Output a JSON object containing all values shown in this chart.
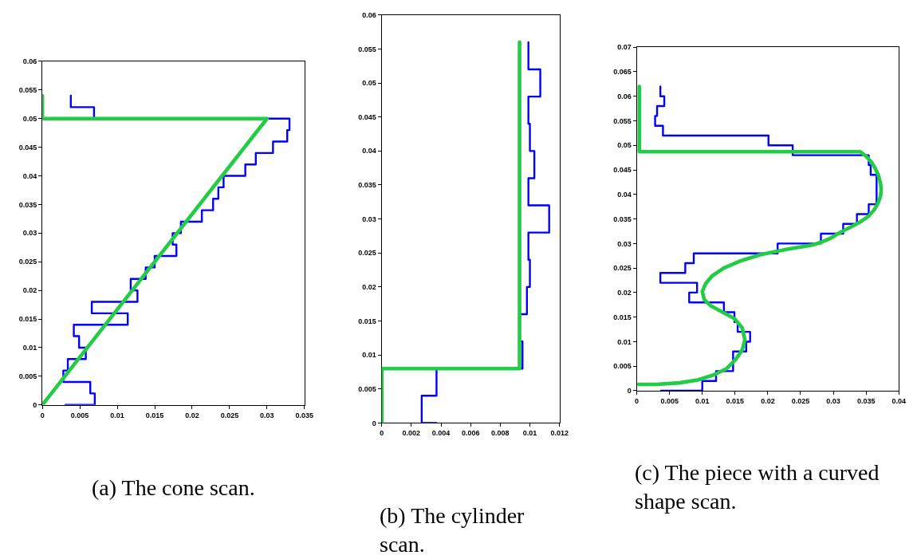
{
  "chart_data": [
    {
      "type": "line",
      "xlim": [
        0,
        0.035
      ],
      "xticks": [
        0,
        0.005,
        0.01,
        0.015,
        0.02,
        0.025,
        0.03,
        0.035
      ],
      "ylim": [
        0,
        0.06
      ],
      "yticks": [
        0,
        0.005,
        0.01,
        0.015,
        0.02,
        0.025,
        0.03,
        0.035,
        0.04,
        0.045,
        0.05,
        0.055,
        0.06
      ],
      "series": [
        {
          "color": "#0000ff",
          "x": [
            0.0031,
            0.007,
            0.007,
            0.0064,
            0.0064,
            0.0028,
            0.0028,
            0.0034,
            0.0034,
            0.0058,
            0.0058,
            0.0049,
            0.0049,
            0.0042,
            0.0042,
            0.0114,
            0.0114,
            0.0066,
            0.0066,
            0.0127,
            0.0127,
            0.0118,
            0.0118,
            0.0138,
            0.0138,
            0.015,
            0.015,
            0.0179,
            0.0179,
            0.0174,
            0.0174,
            0.0185,
            0.0185,
            0.0213,
            0.0213,
            0.0228,
            0.0228,
            0.0235,
            0.0235,
            0.0242,
            0.0242,
            0.0271,
            0.0271,
            0.0285,
            0.0285,
            0.0308,
            0.0308,
            0.0327,
            0.0327,
            0.033,
            0.033,
            0.0069,
            0.0069,
            0.0038,
            0.0038
          ],
          "values": [
            0,
            0,
            0.002,
            0.002,
            0.004,
            0.004,
            0.006,
            0.006,
            0.008,
            0.008,
            0.01,
            0.01,
            0.012,
            0.012,
            0.014,
            0.014,
            0.016,
            0.016,
            0.018,
            0.018,
            0.02,
            0.02,
            0.022,
            0.022,
            0.024,
            0.024,
            0.026,
            0.026,
            0.028,
            0.028,
            0.03,
            0.03,
            0.032,
            0.032,
            0.034,
            0.034,
            0.036,
            0.036,
            0.038,
            0.038,
            0.04,
            0.04,
            0.042,
            0.042,
            0.044,
            0.044,
            0.046,
            0.046,
            0.048,
            0.048,
            0.05,
            0.05,
            0.052,
            0.052,
            0.054
          ]
        },
        {
          "color": "#22cc44",
          "x": [
            0,
            0.03,
            0,
            0
          ],
          "values": [
            0,
            0.05,
            0.05,
            0.054
          ]
        }
      ],
      "annotations": [
        "(a) The cone scan."
      ]
    },
    {
      "type": "line",
      "xlim": [
        0,
        0.012
      ],
      "xticks": [
        0,
        0.002,
        0.004,
        0.006,
        0.008,
        0.01,
        0.012
      ],
      "ylim": [
        0,
        0.06
      ],
      "yticks": [
        0,
        0.005,
        0.01,
        0.015,
        0.02,
        0.025,
        0.03,
        0.035,
        0.04,
        0.045,
        0.05,
        0.055,
        0.06
      ],
      "series": [
        {
          "color": "#0000ff",
          "x": [
            0.0037,
            0.0027,
            0.0027,
            0.0037,
            0.0037,
            0.0095,
            0.0095,
            0.0093,
            0.0093,
            0.0098,
            0.0098,
            0.01,
            0.01,
            0.0099,
            0.0099,
            0.0113,
            0.0113,
            0.0099,
            0.0099,
            0.0103,
            0.0103,
            0.01,
            0.01,
            0.0099,
            0.0099,
            0.0107,
            0.0107,
            0.0099,
            0.0099
          ],
          "values": [
            0,
            0,
            0.004,
            0.004,
            0.008,
            0.008,
            0.012,
            0.012,
            0.016,
            0.016,
            0.02,
            0.02,
            0.024,
            0.024,
            0.028,
            0.028,
            0.032,
            0.032,
            0.036,
            0.036,
            0.04,
            0.04,
            0.044,
            0.044,
            0.048,
            0.048,
            0.052,
            0.052,
            0.056
          ]
        },
        {
          "color": "#22cc44",
          "x": [
            0,
            0,
            0.0093,
            0.0093
          ],
          "values": [
            0,
            0.008,
            0.008,
            0.056
          ]
        }
      ],
      "annotations": [
        "(b) The cylinder scan."
      ]
    },
    {
      "type": "line",
      "xlim": [
        0,
        0.04
      ],
      "xticks": [
        0,
        0.005,
        0.01,
        0.015,
        0.02,
        0.025,
        0.03,
        0.035,
        0.04
      ],
      "ylim": [
        0,
        0.07
      ],
      "yticks": [
        0,
        0.005,
        0.01,
        0.015,
        0.02,
        0.025,
        0.03,
        0.035,
        0.04,
        0.045,
        0.05,
        0.055,
        0.06,
        0.065,
        0.07
      ],
      "series": [
        {
          "color": "#0000ff",
          "x": [
            0.0037,
            0.01,
            0.01,
            0.0121,
            0.0121,
            0.0147,
            0.0147,
            0.0167,
            0.0167,
            0.0173,
            0.0173,
            0.0154,
            0.0154,
            0.0149,
            0.0149,
            0.0133,
            0.0133,
            0.008,
            0.008,
            0.0092,
            0.0092,
            0.0036,
            0.0036,
            0.0074,
            0.0074,
            0.0087,
            0.0087,
            0.0215,
            0.0215,
            0.0281,
            0.0281,
            0.0315,
            0.0315,
            0.0336,
            0.0336,
            0.0354,
            0.0354,
            0.0366,
            0.0366,
            0.0357,
            0.0357,
            0.0354,
            0.0354,
            0.0238,
            0.0238,
            0.0201,
            0.0201,
            0.004,
            0.004,
            0.0028,
            0.0028,
            0.0031,
            0.0031,
            0.0042,
            0.0042,
            0.0036,
            0.0036
          ],
          "values": [
            0,
            0,
            0.002,
            0.002,
            0.004,
            0.004,
            0.008,
            0.008,
            0.01,
            0.01,
            0.012,
            0.012,
            0.014,
            0.014,
            0.016,
            0.016,
            0.018,
            0.018,
            0.02,
            0.02,
            0.022,
            0.022,
            0.024,
            0.024,
            0.026,
            0.026,
            0.028,
            0.028,
            0.03,
            0.03,
            0.032,
            0.032,
            0.034,
            0.034,
            0.036,
            0.036,
            0.038,
            0.038,
            0.044,
            0.044,
            0.046,
            0.046,
            0.048,
            0.048,
            0.05,
            0.05,
            0.052,
            0.052,
            0.054,
            0.054,
            0.056,
            0.056,
            0.058,
            0.058,
            0.06,
            0.06,
            0.062
          ]
        },
        {
          "color": "#22cc44",
          "x": [
            0.0004,
            0.0004,
            0.0341,
            0.035,
            0.0358,
            0.0364,
            0.0369,
            0.0372,
            0.0373,
            0.0372,
            0.0368,
            0.0362,
            0.0353,
            0.0341,
            0.0327,
            0.0311,
            0.0296,
            0.0282,
            0.0268,
            0.0228,
            0.0188,
            0.0157,
            0.0133,
            0.0115,
            0.0105,
            0.01,
            0.0103,
            0.0113,
            0.0131,
            0.0149,
            0.0161,
            0.0165,
            0.0161,
            0.0151,
            0.0137,
            0.0117,
            0.0093,
            0.0065,
            0.003,
            0.0003
          ],
          "values": [
            0.062,
            0.0487,
            0.0487,
            0.0478,
            0.0466,
            0.0453,
            0.0438,
            0.0422,
            0.041,
            0.0396,
            0.0382,
            0.0368,
            0.0355,
            0.0344,
            0.0334,
            0.0323,
            0.0311,
            0.0303,
            0.0297,
            0.0288,
            0.0277,
            0.0264,
            0.025,
            0.0234,
            0.0218,
            0.0202,
            0.0186,
            0.0173,
            0.016,
            0.0147,
            0.0128,
            0.0104,
            0.0083,
            0.0064,
            0.0045,
            0.0032,
            0.0022,
            0.0016,
            0.0013,
            0.0013
          ]
        }
      ],
      "annotations": [
        "(c) The piece with a curved shape scan."
      ]
    }
  ]
}
